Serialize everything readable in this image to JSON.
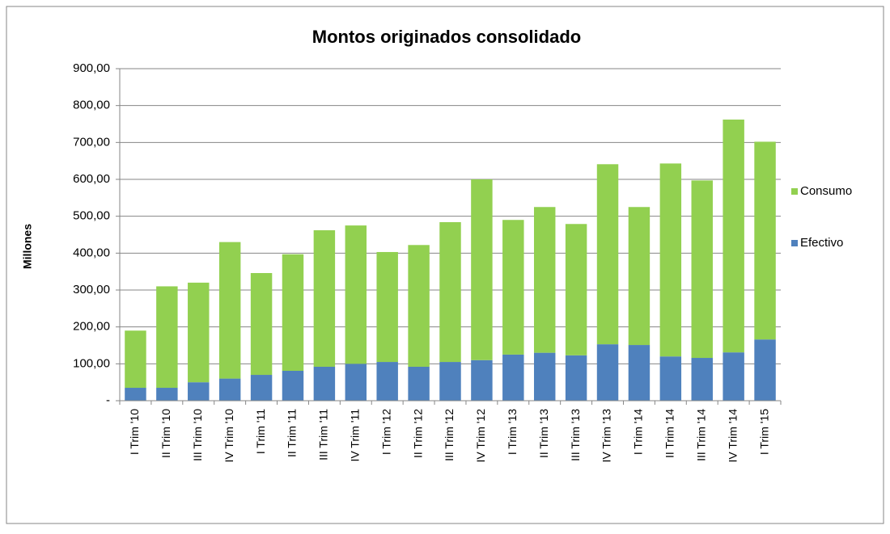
{
  "chart_data": {
    "type": "stacked_bar",
    "title": "Montos originados consolidado",
    "y_label": "Millones",
    "categories": [
      "I Trim '10",
      "II Trim '10",
      "III Trim '10",
      "IV Trim '10",
      "I Trim '11",
      "II Trim '11",
      "III Trim '11",
      "IV Trim '11",
      "I Trim '12",
      "II Trim '12",
      "III Trim '12",
      "IV Trim '12",
      "I Trim '13",
      "II Trim '13",
      "III Trim '13",
      "IV Trim '13",
      "I Trim '14",
      "II Trim '14",
      "III Trim '14",
      "IV Trim '14",
      "I Trim '15"
    ],
    "series": [
      {
        "name": "Efectivo",
        "color": "#4f81bd",
        "values": [
          35,
          35,
          50,
          60,
          70,
          81,
          92,
          100,
          105,
          92,
          105,
          110,
          125,
          130,
          123,
          153,
          151,
          120,
          116,
          131,
          166
        ]
      },
      {
        "name": "Consumo",
        "color": "#92d050",
        "values": [
          155,
          275,
          270,
          370,
          276,
          316,
          370,
          375,
          298,
          330,
          379,
          490,
          365,
          395,
          356,
          488,
          374,
          523,
          481,
          631,
          536
        ]
      }
    ],
    "ylim": [
      0,
      900
    ],
    "yticks": [
      {
        "value": 0,
        "label": "-"
      },
      {
        "value": 100,
        "label": "100,00"
      },
      {
        "value": 200,
        "label": "200,00"
      },
      {
        "value": 300,
        "label": "300,00"
      },
      {
        "value": 400,
        "label": "400,00"
      },
      {
        "value": 500,
        "label": "500,00"
      },
      {
        "value": 600,
        "label": "600,00"
      },
      {
        "value": 700,
        "label": "700,00"
      },
      {
        "value": 800,
        "label": "800,00"
      },
      {
        "value": 900,
        "label": "900,00"
      }
    ],
    "grid": true,
    "legend": "right"
  }
}
